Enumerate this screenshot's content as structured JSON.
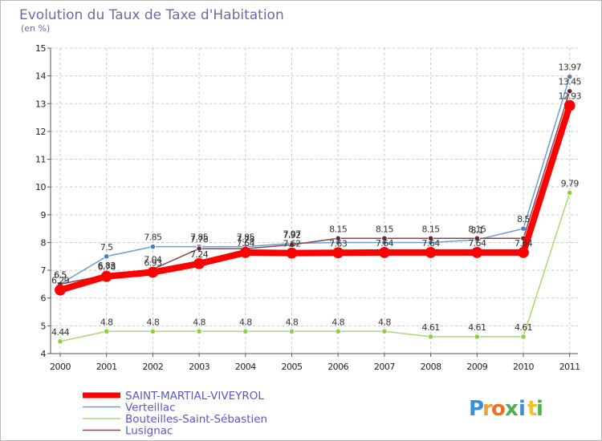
{
  "chart_data": {
    "type": "line",
    "title": "Evolution du Taux de Taxe d'Habitation",
    "subtitle": "(en %)",
    "xlabel": "",
    "ylabel": "",
    "categories": [
      "2000",
      "2001",
      "2002",
      "2003",
      "2004",
      "2005",
      "2006",
      "2007",
      "2008",
      "2009",
      "2010",
      "2011"
    ],
    "ylim": [
      4,
      15
    ],
    "yticks": [
      "4",
      "5",
      "6",
      "7",
      "8",
      "9",
      "10",
      "11",
      "12",
      "13",
      "14",
      "15"
    ],
    "grid": "horizontal dashed",
    "legend_position": "bottom-left",
    "series": [
      {
        "name": "Verteillac",
        "color": "#6a9fd0",
        "marker_color": "#4a7fb8",
        "values": [
          6.5,
          7.5,
          7.85,
          7.85,
          7.85,
          7.97,
          8.0,
          8.0,
          8.0,
          8.1,
          8.5,
          13.97
        ],
        "labels": [
          "6.5",
          "7.5",
          "7.85",
          "7.85",
          "7.85",
          "7.97",
          "",
          "",
          "",
          "8.1",
          "8.5",
          "13.97"
        ]
      },
      {
        "name": "Bouteilles-Saint-Sébastien",
        "color": "#a8d878",
        "marker_color": "#90d040",
        "values": [
          4.44,
          4.8,
          4.8,
          4.8,
          4.8,
          4.8,
          4.8,
          4.8,
          4.61,
          4.61,
          4.61,
          9.79
        ],
        "labels": [
          "4.44",
          "4.8",
          "4.8",
          "4.8",
          "4.8",
          "4.8",
          "4.8",
          "4.8",
          "4.61",
          "4.61",
          "4.61",
          "9.79"
        ]
      },
      {
        "name": "Lusignac",
        "color": "#8a4850",
        "marker_color": "#6a2430",
        "values": [
          6.5,
          6.83,
          7.04,
          7.78,
          7.78,
          7.92,
          8.15,
          8.15,
          8.15,
          8.15,
          8.15,
          13.45
        ],
        "labels": [
          "6.5",
          "6.83",
          "7.04",
          "7.78",
          "7.78",
          "7.92",
          "8.15",
          "8.15",
          "8.15",
          "8.15",
          "",
          "13.45"
        ]
      },
      {
        "name": "SAINT-MARTIAL-VIVEYROL",
        "color": "#ff0000",
        "marker_color": "#ff0000",
        "values": [
          6.29,
          6.78,
          6.93,
          7.24,
          7.64,
          7.62,
          7.63,
          7.64,
          7.64,
          7.64,
          7.64,
          12.93
        ],
        "labels": [
          "6.29",
          "6.78",
          "6.93",
          "7.24",
          "7.64",
          "7.62",
          "7.63",
          "7.64",
          "7.64",
          "7.64",
          "7.64",
          "12.93"
        ]
      }
    ],
    "legend_order": [
      "SAINT-MARTIAL-VIVEYROL",
      "Verteillac",
      "Bouteilles-Saint-Sébastien",
      "Lusignac"
    ]
  },
  "logo": {
    "letters": [
      "P",
      "r",
      "o",
      "x",
      "i",
      "t",
      "i"
    ],
    "colors": [
      "#3a8fd8",
      "#f0a030",
      "#f07020",
      "#50b050",
      "#3a8fd8",
      "#f0c030",
      "#50b050"
    ]
  }
}
